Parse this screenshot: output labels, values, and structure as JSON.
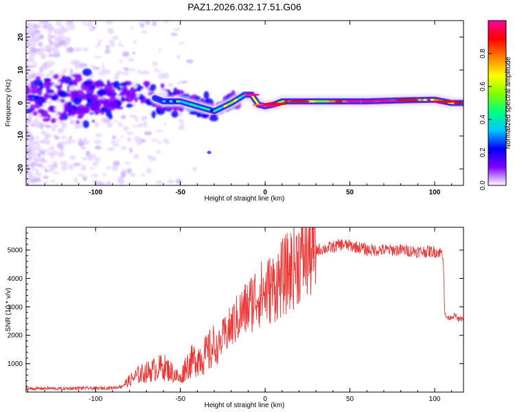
{
  "title": "PAZ1.2026.032.17.51.G06",
  "chart_data": [
    {
      "type": "heatmap",
      "title": "PAZ1.2026.032.17.51.G06",
      "xlabel": "Height of straight line (km)",
      "ylabel": "Frequency (Hz)",
      "xlim": [
        -141,
        117
      ],
      "ylim": [
        -25,
        25
      ],
      "xticks": [
        -100,
        -50,
        0,
        50,
        100
      ],
      "yticks": [
        20,
        10,
        0,
        -10,
        -20
      ],
      "xtick_labels": [
        "-100",
        "-50",
        "0",
        "50",
        "100"
      ],
      "ytick_labels": [
        "20",
        "10",
        "0",
        "-10",
        "-20"
      ],
      "colorbar": {
        "label": "Normalized spectral amplitude",
        "range": [
          0,
          1
        ],
        "ticks": [
          0.0,
          0.2,
          0.4,
          0.6,
          0.8
        ],
        "tick_labels": [
          "0.0",
          "0.2",
          "0.4",
          "0.6",
          "0.8"
        ],
        "colormap": [
          "#ffffff",
          "#8000ff",
          "#0000ff",
          "#00c8ff",
          "#00ff80",
          "#80ff00",
          "#ffff00",
          "#ff8000",
          "#ff0000",
          "#ff00a0"
        ]
      },
      "ridge": {
        "x": [
          -120,
          -100,
          -90,
          -80,
          -70,
          -60,
          -50,
          -40,
          -30,
          -20,
          -12,
          -8,
          -4,
          0,
          5,
          10,
          20,
          40,
          60,
          80,
          100,
          110,
          117
        ],
        "y": [
          1.5,
          1.0,
          2.0,
          4.0,
          2.5,
          0.5,
          0.5,
          -1.0,
          -2.5,
          0.0,
          2.5,
          2.5,
          -0.5,
          -1.0,
          -0.5,
          0.5,
          0.5,
          0.5,
          0.5,
          0.8,
          1.0,
          0.0,
          0.0
        ]
      }
    },
    {
      "type": "line",
      "xlabel": "Height of straight line (km)",
      "ylabel": "SNR (10 * v/v)",
      "xlim": [
        -141,
        117
      ],
      "ylim": [
        0,
        5800
      ],
      "xticks": [
        -100,
        -50,
        0,
        50,
        100
      ],
      "yticks": [
        1000,
        2000,
        3000,
        4000,
        5000
      ],
      "xtick_labels": [
        "-100",
        "-50",
        "0",
        "50",
        "100"
      ],
      "ytick_labels": [
        "1000",
        "2000",
        "3000",
        "4000",
        "5000"
      ],
      "color": "#ee3333",
      "series": [
        {
          "name": "SNR",
          "x": [
            -141,
            -130,
            -120,
            -110,
            -100,
            -90,
            -85,
            -80,
            -75,
            -70,
            -65,
            -60,
            -55,
            -50,
            -47,
            -45,
            -40,
            -35,
            -30,
            -28,
            -25,
            -20,
            -15,
            -10,
            -5,
            0,
            5,
            10,
            15,
            20,
            25,
            30,
            35,
            40,
            45,
            50,
            55,
            60,
            70,
            80,
            90,
            100,
            104,
            105,
            106,
            108,
            110,
            112,
            114,
            117
          ],
          "y": [
            120,
            130,
            120,
            140,
            130,
            150,
            200,
            400,
            600,
            700,
            800,
            900,
            700,
            450,
            900,
            1000,
            1200,
            1300,
            1600,
            1500,
            1900,
            2300,
            2700,
            3000,
            3400,
            3500,
            3700,
            4000,
            4300,
            4700,
            4900,
            5000,
            5050,
            5100,
            5200,
            5150,
            5100,
            5000,
            5000,
            5000,
            4950,
            4950,
            4900,
            4850,
            2700,
            2600,
            2650,
            2700,
            2550,
            2600
          ]
        }
      ]
    }
  ]
}
